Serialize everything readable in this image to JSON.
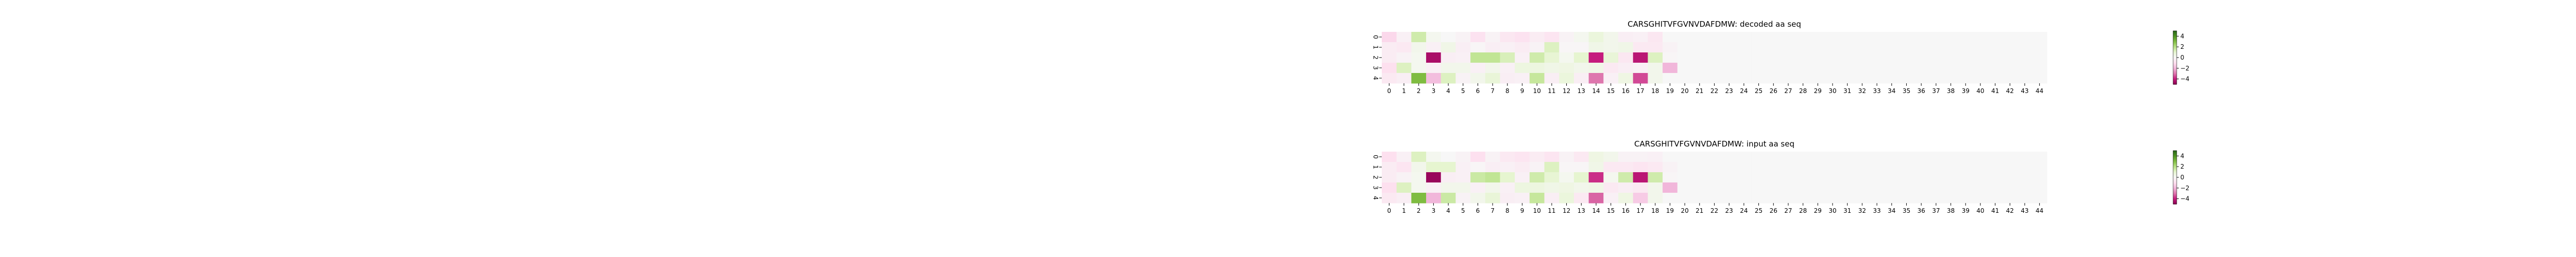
{
  "colors": {
    "pos": "#4d9221",
    "neg": "#c51b7d",
    "mid": "#f7f7f7"
  },
  "chart_data": [
    {
      "type": "heatmap",
      "title": "CARSGHITVFGVNVDAFDMW: decoded aa seq",
      "rows": [
        "0",
        "1",
        "2",
        "3",
        "4"
      ],
      "columns": [
        "0",
        "1",
        "2",
        "3",
        "4",
        "5",
        "6",
        "7",
        "8",
        "9",
        "10",
        "11",
        "12",
        "13",
        "14",
        "15",
        "16",
        "17",
        "18",
        "19",
        "20",
        "21",
        "22",
        "23",
        "24",
        "25",
        "26",
        "27",
        "28",
        "29",
        "30",
        "31",
        "32",
        "33",
        "34",
        "35",
        "36",
        "37",
        "38",
        "39",
        "40",
        "41",
        "42",
        "43",
        "44"
      ],
      "values": [
        [
          -1.2,
          -0.3,
          1.5,
          0.2,
          0,
          -0.2,
          -0.9,
          -0.2,
          -0.7,
          -0.9,
          -0.5,
          -0.8,
          -0.2,
          0.2,
          0.7,
          0.3,
          -0.4,
          -0.3,
          -0.7,
          0,
          0,
          0,
          0,
          0,
          0,
          0,
          0,
          0,
          0,
          0,
          0,
          0,
          0,
          0,
          0,
          0,
          0,
          0,
          0,
          0,
          0,
          0,
          0,
          0,
          0
        ],
        [
          -0.5,
          -0.6,
          0.3,
          -0.3,
          0.4,
          -0.4,
          -0.1,
          -0.4,
          -0.3,
          -0.5,
          -0.2,
          1.2,
          -0.1,
          -0.1,
          0.4,
          0.3,
          0.4,
          -0.6,
          -0.6,
          -0.2,
          0,
          0,
          0,
          0,
          0,
          0,
          0,
          0,
          0,
          0,
          0,
          0,
          0,
          0,
          0,
          0,
          0,
          0,
          0,
          0,
          0,
          0,
          0,
          0,
          0
        ],
        [
          -0.5,
          -0.2,
          0.2,
          -4.5,
          -0.4,
          -0.3,
          1.8,
          1.8,
          1.3,
          -0.3,
          1.5,
          0.9,
          0.2,
          1.0,
          -4.0,
          0.8,
          -0.7,
          -4.2,
          1.2,
          -0.1,
          0,
          0,
          0,
          0,
          0,
          0,
          0,
          0,
          0,
          0,
          0,
          0,
          0,
          0,
          0,
          0,
          0,
          0,
          0,
          0,
          0,
          0,
          0,
          0,
          0
        ],
        [
          -1.0,
          1.2,
          0.2,
          -0.3,
          0.3,
          0.3,
          -0.3,
          0.3,
          -0.3,
          0.6,
          0.6,
          0.4,
          0.5,
          0.3,
          0.4,
          -0.6,
          -0.4,
          -0.3,
          0.3,
          -2.0,
          0,
          0,
          0,
          0,
          0,
          0,
          0,
          0,
          0,
          0,
          0,
          0,
          0,
          0,
          0,
          0,
          0,
          0,
          0,
          0,
          0,
          0,
          0,
          0,
          0
        ],
        [
          -0.6,
          -0.4,
          3.0,
          -1.8,
          1.2,
          -0.2,
          0.3,
          0.8,
          -0.4,
          -0.3,
          1.7,
          -0.4,
          0.7,
          -0.4,
          -3.0,
          -0.3,
          0.5,
          -3.5,
          0.3,
          0.0,
          0,
          0,
          0,
          0,
          0,
          0,
          0,
          0,
          0,
          0,
          0,
          0,
          0,
          0,
          0,
          0,
          0,
          0,
          0,
          0,
          0,
          0,
          0,
          0,
          0
        ]
      ],
      "vmin": -5,
      "vmax": 5,
      "colorbar_ticks": [
        "4",
        "2",
        "0",
        "−2",
        "−4"
      ],
      "colorbar_tick_values": [
        4,
        2,
        0,
        -2,
        -4
      ],
      "colormap": "PiYG"
    },
    {
      "type": "heatmap",
      "title": "CARSGHITVFGVNVDAFDMW: input aa seq",
      "rows": [
        "0",
        "1",
        "2",
        "3",
        "4"
      ],
      "columns": [
        "0",
        "1",
        "2",
        "3",
        "4",
        "5",
        "6",
        "7",
        "8",
        "9",
        "10",
        "11",
        "12",
        "13",
        "14",
        "15",
        "16",
        "17",
        "18",
        "19",
        "20",
        "21",
        "22",
        "23",
        "24",
        "25",
        "26",
        "27",
        "28",
        "29",
        "30",
        "31",
        "32",
        "33",
        "34",
        "35",
        "36",
        "37",
        "38",
        "39",
        "40",
        "41",
        "42",
        "43",
        "44"
      ],
      "values": [
        [
          -1.0,
          -0.3,
          1.2,
          0.2,
          0,
          -0.2,
          -1.0,
          -0.2,
          -0.6,
          -0.8,
          -0.5,
          -0.8,
          -0.2,
          -0.6,
          0.5,
          0.3,
          -0.2,
          -0.2,
          -0.3,
          0,
          0,
          0,
          0,
          0,
          0,
          0,
          0,
          0,
          0,
          0,
          0,
          0,
          0,
          0,
          0,
          0,
          0,
          0,
          0,
          0,
          0,
          0,
          0,
          0,
          0
        ],
        [
          -0.5,
          -0.8,
          0.3,
          1.0,
          1.0,
          -0.3,
          -0.1,
          -0.4,
          -0.3,
          -0.5,
          -0.2,
          1.2,
          -0.1,
          -0.1,
          0.4,
          -0.6,
          -0.6,
          -0.8,
          -0.6,
          -0.2,
          0,
          0,
          0,
          0,
          0,
          0,
          0,
          0,
          0,
          0,
          0,
          0,
          0,
          0,
          0,
          0,
          0,
          0,
          0,
          0,
          0,
          0,
          0,
          0,
          0
        ],
        [
          -0.5,
          -0.2,
          0.2,
          -4.8,
          -0.4,
          -0.3,
          1.6,
          1.8,
          1.0,
          -0.3,
          1.5,
          0.9,
          0.2,
          1.0,
          -3.8,
          0.2,
          1.5,
          -4.2,
          1.5,
          -0.1,
          0,
          0,
          0,
          0,
          0,
          0,
          0,
          0,
          0,
          0,
          0,
          0,
          0,
          0,
          0,
          0,
          0,
          0,
          0,
          0,
          0,
          0,
          0,
          0,
          0
        ],
        [
          -1.0,
          1.2,
          0.2,
          -0.3,
          0.3,
          0.3,
          -0.3,
          0.3,
          -0.3,
          0.6,
          0.6,
          0.4,
          0.5,
          0.3,
          0.4,
          -0.6,
          -0.4,
          -0.6,
          0.3,
          -2.0,
          0,
          0,
          0,
          0,
          0,
          0,
          0,
          0,
          0,
          0,
          0,
          0,
          0,
          0,
          0,
          0,
          0,
          0,
          0,
          0,
          0,
          0,
          0,
          0,
          0
        ],
        [
          -0.6,
          -0.4,
          3.0,
          -2.0,
          1.6,
          -0.2,
          0.3,
          0.8,
          -0.4,
          -0.3,
          1.7,
          -0.4,
          0.7,
          -0.6,
          -3.2,
          -0.3,
          0.5,
          -1.5,
          0.3,
          0.0,
          0,
          0,
          0,
          0,
          0,
          0,
          0,
          0,
          0,
          0,
          0,
          0,
          0,
          0,
          0,
          0,
          0,
          0,
          0,
          0,
          0,
          0,
          0,
          0,
          0
        ]
      ],
      "vmin": -5,
      "vmax": 5,
      "colorbar_ticks": [
        "4",
        "2",
        "0",
        "−2",
        "−4"
      ],
      "colorbar_tick_values": [
        4,
        2,
        0,
        -2,
        -4
      ],
      "colormap": "PiYG"
    }
  ]
}
